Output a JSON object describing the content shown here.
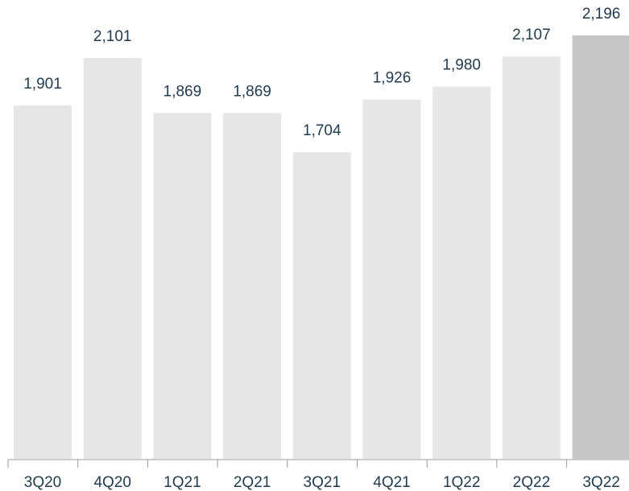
{
  "chart_data": {
    "type": "bar",
    "categories": [
      "3Q20",
      "4Q20",
      "1Q21",
      "2Q21",
      "3Q21",
      "4Q21",
      "1Q22",
      "2Q22",
      "3Q22"
    ],
    "values": [
      1901,
      2101,
      1869,
      1869,
      1704,
      1926,
      1980,
      2107,
      2196
    ],
    "value_labels": [
      "1,901",
      "2,101",
      "1,869",
      "1,869",
      "1,704",
      "1,926",
      "1,980",
      "2,107",
      "2,196"
    ],
    "colors": [
      "#e6e6e6",
      "#e6e6e6",
      "#e6e6e6",
      "#e6e6e6",
      "#e6e6e6",
      "#e6e6e6",
      "#e6e6e6",
      "#e6e6e6",
      "#c6c6c6"
    ],
    "ylim": [
      413,
      2345
    ]
  }
}
